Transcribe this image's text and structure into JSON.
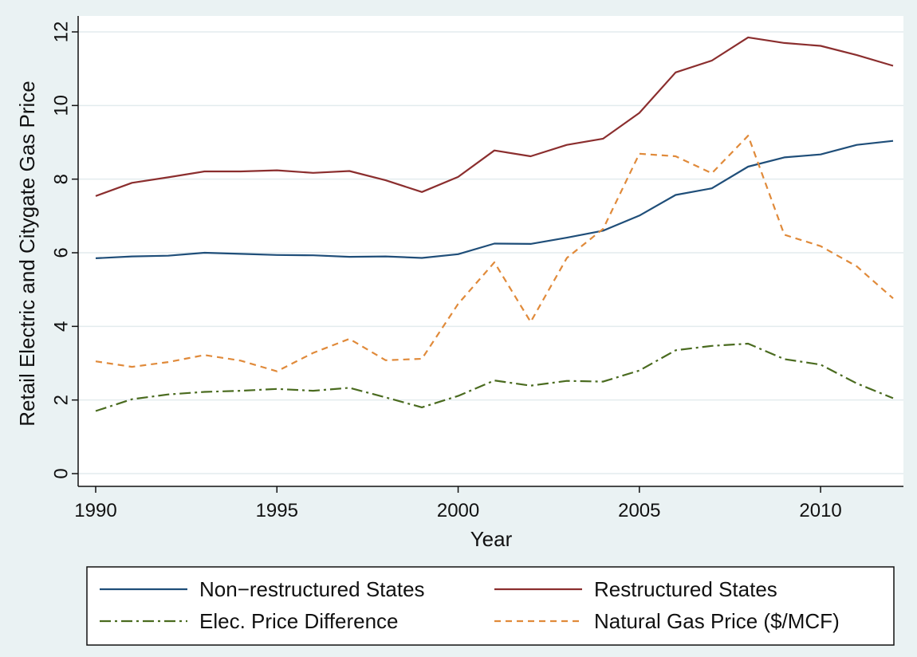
{
  "chart_data": {
    "type": "line",
    "title": "",
    "xlabel": "Year",
    "ylabel": "Retail Electric and Citygate Gas Price",
    "xlim": [
      1990,
      2012
    ],
    "ylim": [
      0,
      12
    ],
    "xticks": [
      1990,
      1995,
      2000,
      2005,
      2010
    ],
    "yticks": [
      0,
      2,
      4,
      6,
      8,
      10,
      12
    ],
    "grid": true,
    "legend_position": "bottom",
    "x": [
      1990,
      1991,
      1992,
      1993,
      1994,
      1995,
      1996,
      1997,
      1998,
      1999,
      2000,
      2001,
      2002,
      2003,
      2004,
      2005,
      2006,
      2007,
      2008,
      2009,
      2010,
      2011,
      2012
    ],
    "series": [
      {
        "name": "Non−restructured States",
        "color": "#1f4e79",
        "dash": "solid",
        "values": [
          5.85,
          5.9,
          5.92,
          6.0,
          5.97,
          5.94,
          5.93,
          5.89,
          5.9,
          5.86,
          5.96,
          6.25,
          6.24,
          6.41,
          6.6,
          7.01,
          7.57,
          7.75,
          8.34,
          8.59,
          8.67,
          8.93,
          9.04
        ]
      },
      {
        "name": "Restructured States",
        "color": "#8b2e2e",
        "dash": "solid",
        "values": [
          7.54,
          7.9,
          8.05,
          8.21,
          8.21,
          8.24,
          8.17,
          8.22,
          7.97,
          7.65,
          8.06,
          8.78,
          8.62,
          8.93,
          9.1,
          9.8,
          10.9,
          11.22,
          11.85,
          11.7,
          11.62,
          11.37,
          11.08
        ]
      },
      {
        "name": "Elec. Price Difference",
        "color": "#4a6b1f",
        "dash": "dashdot",
        "values": [
          1.7,
          2.02,
          2.15,
          2.22,
          2.25,
          2.3,
          2.25,
          2.33,
          2.07,
          1.8,
          2.11,
          2.53,
          2.39,
          2.52,
          2.5,
          2.8,
          3.35,
          3.47,
          3.53,
          3.11,
          2.96,
          2.45,
          2.05
        ]
      },
      {
        "name": "Natural Gas Price ($/MCF)",
        "color": "#e08a3a",
        "dash": "dashed",
        "values": [
          3.05,
          2.9,
          3.03,
          3.22,
          3.07,
          2.78,
          3.28,
          3.66,
          3.08,
          3.12,
          4.61,
          5.74,
          4.12,
          5.86,
          6.65,
          8.69,
          8.62,
          8.16,
          9.18,
          6.49,
          6.18,
          5.63,
          4.76
        ]
      }
    ]
  }
}
